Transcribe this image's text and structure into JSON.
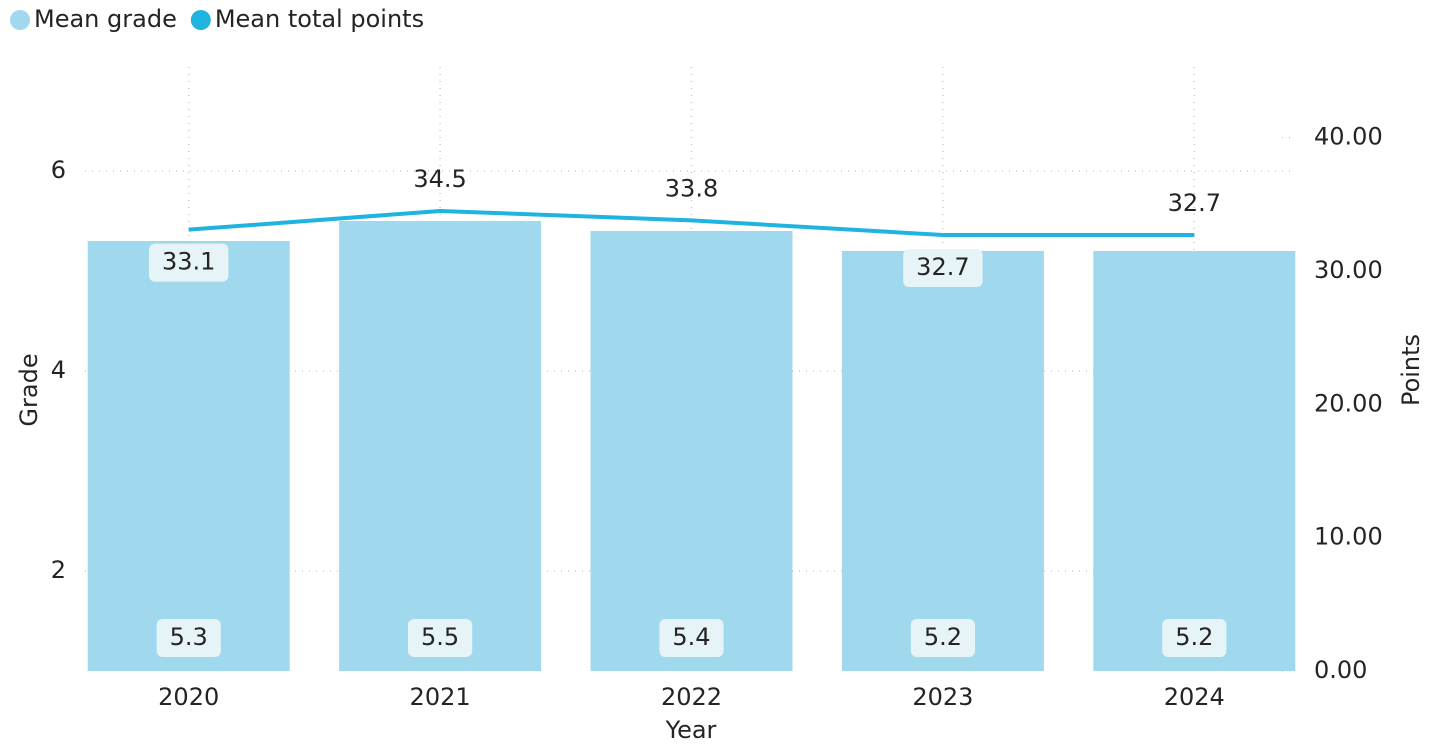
{
  "chart_data": {
    "type": "bar-line",
    "categories": [
      "2020",
      "2021",
      "2022",
      "2023",
      "2024"
    ],
    "x_label": "Year",
    "y_label": "Grade",
    "y2_label": "Points",
    "series": [
      {
        "name": "Mean grade",
        "type": "bar",
        "color": "#a0d9ee",
        "values": [
          5.3,
          5.5,
          5.4,
          5.2,
          5.2
        ]
      },
      {
        "name": "Mean total points",
        "type": "line",
        "axis": "y2",
        "color": "#1fb3e0",
        "values": [
          33.1,
          34.5,
          33.8,
          32.7,
          32.7
        ]
      }
    ],
    "ylim": [
      1,
      7
    ],
    "yticks": [
      2,
      4,
      6
    ],
    "y2lim": [
      0,
      45
    ],
    "y2ticks": [
      {
        "value": 0,
        "label": "0.00"
      },
      {
        "value": 10,
        "label": "10.00"
      },
      {
        "value": 20,
        "label": "20.00"
      },
      {
        "value": 30,
        "label": "30.00"
      },
      {
        "value": 40,
        "label": "40.00"
      }
    ],
    "grid": true,
    "legend": "top-left"
  }
}
